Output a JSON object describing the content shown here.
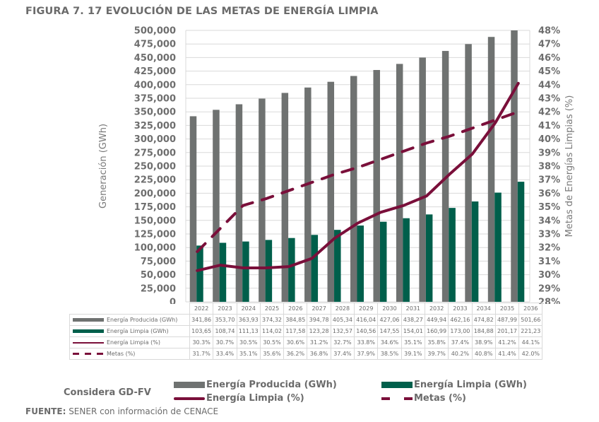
{
  "title": "FIGURA 7. 17 EVOLUCIÓN DE LAS METAS DE ENERGÍA LIMPIA",
  "chart_data": {
    "type": "bar",
    "title": "FIGURA 7. 17 EVOLUCIÓN DE LAS METAS DE ENERGÍA LIMPIA",
    "categories": [
      "2022",
      "2023",
      "2024",
      "2025",
      "2026",
      "2027",
      "2028",
      "2029",
      "2030",
      "2031",
      "2032",
      "2033",
      "2034",
      "2035",
      "2036"
    ],
    "ylabel": "Generación (GWh)",
    "y2label": "Metas de Energías Limpias (%)",
    "ylim": [
      0,
      500000
    ],
    "y2lim": [
      28,
      48
    ],
    "yticks": [
      "0",
      "25,000",
      "50,000",
      "75,000",
      "100,000",
      "125,000",
      "150,000",
      "175,000",
      "200,000",
      "225,000",
      "250,000",
      "275,000",
      "300,000",
      "325,000",
      "350,000",
      "375,000",
      "400,000",
      "425,000",
      "450,000",
      "475,000",
      "500,000"
    ],
    "y2ticks": [
      "28%",
      "29%",
      "30%",
      "31%",
      "32%",
      "33%",
      "34%",
      "35%",
      "36%",
      "37%",
      "38%",
      "39%",
      "40%",
      "41%",
      "42%",
      "43%",
      "44%",
      "45%",
      "46%",
      "47%",
      "48%"
    ],
    "grid": true,
    "series": [
      {
        "name": "Energía Producida (GWh)",
        "type": "bar",
        "axis": "left",
        "color": "#6f7271",
        "values": [
          341860,
          353700,
          363930,
          374320,
          384850,
          394780,
          405340,
          416040,
          427060,
          438270,
          449940,
          462160,
          474820,
          487990,
          501660
        ],
        "labels": [
          "341,86",
          "353,70",
          "363,93",
          "374,32",
          "384,85",
          "394,78",
          "405,34",
          "416,04",
          "427,06",
          "438,27",
          "449,94",
          "462,16",
          "474,82",
          "487,99",
          "501,66"
        ]
      },
      {
        "name": "Energía Limpia (GWh)",
        "type": "bar",
        "axis": "left",
        "color": "#005f4b",
        "values": [
          103650,
          108740,
          111130,
          114020,
          117580,
          123280,
          132570,
          140560,
          147550,
          154010,
          160990,
          173000,
          184880,
          201170,
          221230
        ],
        "labels": [
          "103,65",
          "108,74",
          "111,13",
          "114,02",
          "117,58",
          "123,28",
          "132,57",
          "140,56",
          "147,55",
          "154,01",
          "160,99",
          "173,00",
          "184,88",
          "201,17",
          "221,23"
        ]
      },
      {
        "name": "Energía Limpia (%)",
        "type": "line",
        "axis": "right",
        "color": "#7a0f3a",
        "values": [
          30.3,
          30.7,
          30.5,
          30.5,
          30.6,
          31.2,
          32.7,
          33.8,
          34.6,
          35.1,
          35.8,
          37.4,
          38.9,
          41.2,
          44.1
        ],
        "labels": [
          "30.3%",
          "30.7%",
          "30.5%",
          "30.5%",
          "30.6%",
          "31.2%",
          "32.7%",
          "33.8%",
          "34.6%",
          "35.1%",
          "35.8%",
          "37.4%",
          "38.9%",
          "41.2%",
          "44.1%"
        ]
      },
      {
        "name": "Metas (%)",
        "type": "dashed-line",
        "axis": "right",
        "color": "#7a0f3a",
        "values": [
          31.7,
          33.4,
          35.1,
          35.6,
          36.2,
          36.8,
          37.4,
          37.9,
          38.5,
          39.1,
          39.7,
          40.2,
          40.8,
          41.4,
          42.0
        ],
        "labels": [
          "31.7%",
          "33.4%",
          "35.1%",
          "35.6%",
          "36.2%",
          "36.8%",
          "37.4%",
          "37.9%",
          "38.5%",
          "39.1%",
          "39.7%",
          "40.2%",
          "40.8%",
          "41.4%",
          "42.0%"
        ]
      }
    ],
    "legend": {
      "title": "Considera GD-FV",
      "placement": "bottom",
      "entries": [
        "Energía Producida (GWh)",
        "Energía Limpia (GWh)",
        "Energía Limpia (%)",
        "Metas (%)"
      ]
    }
  },
  "table": {
    "row_labels": [
      "Energía Producida (GWh)",
      "Energía Limpia (GWh)",
      "Energía Limpia (%)",
      "Metas (%)"
    ]
  },
  "source": {
    "label": "FUENTE:",
    "text": " SENER con información de CENACE"
  }
}
